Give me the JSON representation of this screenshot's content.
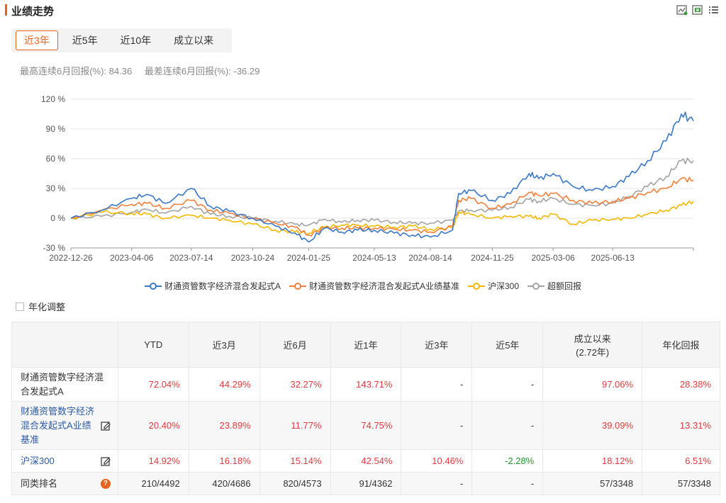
{
  "header": {
    "title": "业绩走势"
  },
  "tabs": [
    {
      "label": "近3年",
      "active": true
    },
    {
      "label": "近5年"
    },
    {
      "label": "近10年"
    },
    {
      "label": "成立以来"
    }
  ],
  "stats": {
    "best": "最高连续6月回报(%): 84.36",
    "worst": "最差连续6月回报(%): -36.29"
  },
  "annual_adjust": "年化调整",
  "chart_data": {
    "type": "line",
    "x_labels": [
      "2022-12-26",
      "2023-04-06",
      "2023-07-14",
      "2023-10-24",
      "2024-01-25",
      "2024-05-13",
      "2024-08-14",
      "2024-11-25",
      "2025-03-06",
      "2025-06-13"
    ],
    "y_ticks": [
      "120 %",
      "90 %",
      "60 %",
      "30 %",
      "0 %",
      "-30 %"
    ],
    "ylim": [
      -30,
      120
    ],
    "x": [
      "2022-12-26",
      "2023-02-15",
      "2023-04-06",
      "2023-05-01",
      "2023-06-01",
      "2023-07-14",
      "2023-08-15",
      "2023-09-15",
      "2023-10-24",
      "2023-12-01",
      "2024-01-02",
      "2024-01-25",
      "2024-02-20",
      "2024-03-20",
      "2024-04-15",
      "2024-05-13",
      "2024-06-15",
      "2024-07-15",
      "2024-08-14",
      "2024-09-20",
      "2024-09-30",
      "2024-10-20",
      "2024-11-25",
      "2024-12-25",
      "2025-01-25",
      "2025-02-10",
      "2025-03-06",
      "2025-04-08",
      "2025-05-10",
      "2025-06-13",
      "2025-07-10",
      "2025-08-10",
      "2025-09-10",
      "2025-10-05",
      "2025-10-25"
    ],
    "series": [
      {
        "name": "财通资管数字经济混合发起式A",
        "color": "#3b78c6",
        "values": [
          0,
          8,
          20,
          24,
          15,
          30,
          12,
          7,
          0,
          -8,
          -15,
          -24,
          -10,
          -14,
          -12,
          -12,
          -15,
          -17,
          -19,
          -12,
          25,
          28,
          18,
          25,
          45,
          40,
          45,
          32,
          28,
          32,
          42,
          58,
          78,
          105,
          98
        ]
      },
      {
        "name": "财通资管数字经济混合发起式A业绩基准",
        "color": "#f0803a",
        "values": [
          0,
          8,
          14,
          15,
          10,
          18,
          8,
          5,
          0,
          -5,
          -9,
          -17,
          -10,
          -10,
          -10,
          -10,
          -11,
          -12,
          -14,
          -8,
          18,
          20,
          10,
          14,
          26,
          23,
          25,
          18,
          15,
          17,
          20,
          26,
          30,
          40,
          38
        ]
      },
      {
        "name": "沪深300",
        "color": "#f5b800",
        "values": [
          0,
          6,
          5,
          4,
          0,
          3,
          0,
          -2,
          -6,
          -12,
          -14,
          -15,
          -9,
          -7,
          -7,
          -8,
          -9,
          -8,
          -11,
          -10,
          6,
          4,
          0,
          2,
          2,
          0,
          4,
          -6,
          -2,
          -1,
          0,
          4,
          8,
          13,
          17
        ]
      },
      {
        "name": "超额回报",
        "color": "#a3a3a3",
        "values": [
          0,
          2,
          6,
          9,
          5,
          12,
          4,
          2,
          0,
          -3,
          -6,
          -7,
          -1,
          -4,
          -2,
          -2,
          -4,
          -5,
          -5,
          -2,
          7,
          8,
          8,
          11,
          19,
          17,
          20,
          14,
          13,
          15,
          22,
          32,
          42,
          58,
          58
        ]
      }
    ]
  },
  "table": {
    "headers": [
      "",
      "YTD",
      "近3月",
      "近6月",
      "近1年",
      "近3年",
      "近5年",
      "成立以来\n(2.72年)",
      "年化回报"
    ],
    "rows": [
      {
        "name": "财通资管数字经济混合发起式A",
        "link": false,
        "icon": "",
        "cells": [
          {
            "v": "72.04%",
            "c": "red"
          },
          {
            "v": "44.29%",
            "c": "red"
          },
          {
            "v": "32.27%",
            "c": "red"
          },
          {
            "v": "143.71%",
            "c": "red"
          },
          {
            "v": "-",
            "c": "dark"
          },
          {
            "v": "-",
            "c": "dark"
          },
          {
            "v": "97.06%",
            "c": "red"
          },
          {
            "v": "28.38%",
            "c": "red"
          }
        ]
      },
      {
        "name": "财通资管数字经济混合发起式A业绩基准",
        "link": true,
        "icon": "edit-icon",
        "cells": [
          {
            "v": "20.40%",
            "c": "red"
          },
          {
            "v": "23.89%",
            "c": "red"
          },
          {
            "v": "11.77%",
            "c": "red"
          },
          {
            "v": "74.75%",
            "c": "red"
          },
          {
            "v": "-",
            "c": "dark"
          },
          {
            "v": "-",
            "c": "dark"
          },
          {
            "v": "39.09%",
            "c": "red"
          },
          {
            "v": "13.31%",
            "c": "red"
          }
        ]
      },
      {
        "name": "沪深300",
        "link": true,
        "icon": "edit-icon",
        "cells": [
          {
            "v": "14.92%",
            "c": "red"
          },
          {
            "v": "16.18%",
            "c": "red"
          },
          {
            "v": "15.14%",
            "c": "red"
          },
          {
            "v": "42.54%",
            "c": "red"
          },
          {
            "v": "10.46%",
            "c": "red"
          },
          {
            "v": "-2.28%",
            "c": "green"
          },
          {
            "v": "18.12%",
            "c": "red"
          },
          {
            "v": "6.51%",
            "c": "red"
          }
        ]
      },
      {
        "name": "同类排名",
        "link": false,
        "icon": "help-icon",
        "cells": [
          {
            "v": "210/4492",
            "c": "dark"
          },
          {
            "v": "420/4686",
            "c": "dark"
          },
          {
            "v": "820/4573",
            "c": "dark"
          },
          {
            "v": "91/4362",
            "c": "dark"
          },
          {
            "v": "-",
            "c": "dark"
          },
          {
            "v": "-",
            "c": "dark"
          },
          {
            "v": "57/3348",
            "c": "dark"
          },
          {
            "v": "57/3348",
            "c": "dark"
          }
        ]
      }
    ]
  }
}
